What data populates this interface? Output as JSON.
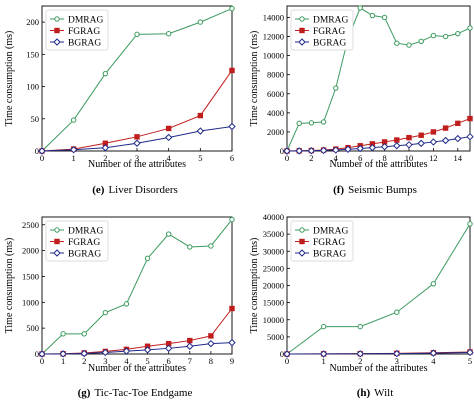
{
  "colors": {
    "DMRAG": "#3c9a5f",
    "FGRAG": "#c01d1d",
    "BGRAG": "#1f2a8a"
  },
  "chart_data": [
    {
      "type": "line",
      "caption_label": "(e)",
      "caption_text": "Liver Disorders",
      "xlabel": "Number of the attributes",
      "ylabel": "Time consumption (ms)",
      "xlim": [
        0,
        6
      ],
      "ylim": [
        0,
        225
      ],
      "xticks": [
        0,
        1,
        2,
        3,
        4,
        5,
        6
      ],
      "yticks": [
        0,
        50,
        100,
        150,
        200
      ],
      "legend": "top-left",
      "x": [
        0,
        1,
        2,
        3,
        4,
        5,
        6
      ],
      "series": [
        {
          "name": "DMRAG",
          "marker": "circle",
          "values": [
            0,
            48,
            120,
            181,
            182,
            200,
            221
          ]
        },
        {
          "name": "FGRAG",
          "marker": "square",
          "values": [
            0,
            3,
            12,
            22,
            35,
            55,
            125
          ]
        },
        {
          "name": "BGRAG",
          "marker": "diamond",
          "values": [
            0,
            2,
            5,
            12,
            21,
            31,
            38
          ]
        }
      ]
    },
    {
      "type": "line",
      "caption_label": "(f)",
      "caption_text": "Seismic Bumps",
      "xlabel": "Number of the attributes",
      "ylabel": "Time consumption (ms)",
      "xlim": [
        0,
        15
      ],
      "ylim": [
        0,
        15200
      ],
      "xticks": [
        0,
        2,
        4,
        6,
        8,
        10,
        12,
        14
      ],
      "yticks": [
        0,
        2000,
        4000,
        6000,
        8000,
        10000,
        12000,
        14000
      ],
      "legend": "top-left",
      "x": [
        0,
        1,
        2,
        3,
        4,
        5,
        6,
        7,
        8,
        9,
        10,
        11,
        12,
        13,
        14,
        15
      ],
      "series": [
        {
          "name": "DMRAG",
          "marker": "circle",
          "values": [
            0,
            2900,
            2950,
            3050,
            6600,
            11800,
            15000,
            14200,
            14000,
            11300,
            11100,
            11500,
            12100,
            12000,
            12300,
            12900
          ]
        },
        {
          "name": "FGRAG",
          "marker": "square",
          "values": [
            0,
            20,
            50,
            100,
            200,
            350,
            550,
            750,
            950,
            1150,
            1400,
            1650,
            2000,
            2400,
            2900,
            3400
          ]
        },
        {
          "name": "BGRAG",
          "marker": "diamond",
          "values": [
            0,
            10,
            30,
            60,
            100,
            180,
            260,
            350,
            450,
            550,
            650,
            800,
            950,
            1100,
            1300,
            1500
          ]
        }
      ]
    },
    {
      "type": "line",
      "caption_label": "(g)",
      "caption_text": "Tic-Tac-Toe Endgame",
      "xlabel": "Number of the attributes",
      "ylabel": "Time consumption (ms)",
      "xlim": [
        0,
        9
      ],
      "ylim": [
        0,
        2650
      ],
      "xticks": [
        0,
        1,
        2,
        3,
        4,
        5,
        6,
        7,
        8,
        9
      ],
      "yticks": [
        0,
        500,
        1000,
        1500,
        2000,
        2500
      ],
      "legend": "top-left",
      "x": [
        0,
        1,
        2,
        3,
        4,
        5,
        6,
        7,
        8,
        9
      ],
      "series": [
        {
          "name": "DMRAG",
          "marker": "circle",
          "values": [
            0,
            390,
            390,
            800,
            970,
            1850,
            2320,
            2070,
            2090,
            2600
          ]
        },
        {
          "name": "FGRAG",
          "marker": "square",
          "values": [
            0,
            5,
            20,
            50,
            90,
            150,
            200,
            260,
            350,
            880
          ]
        },
        {
          "name": "BGRAG",
          "marker": "diamond",
          "values": [
            0,
            3,
            10,
            30,
            55,
            80,
            110,
            150,
            200,
            220
          ]
        }
      ]
    },
    {
      "type": "line",
      "caption_label": "(h)",
      "caption_text": "Wilt",
      "xlabel": "Number of the attributes",
      "ylabel": "Time consumption (ms)",
      "xlim": [
        0,
        5
      ],
      "ylim": [
        0,
        40000
      ],
      "xticks": [
        0,
        1,
        2,
        3,
        4,
        5
      ],
      "yticks": [
        0,
        5000,
        10000,
        15000,
        20000,
        25000,
        30000,
        35000,
        40000
      ],
      "legend": "top-left",
      "x": [
        0,
        1,
        2,
        3,
        4,
        5
      ],
      "series": [
        {
          "name": "DMRAG",
          "marker": "circle",
          "values": [
            0,
            8000,
            8000,
            12200,
            20500,
            38000
          ]
        },
        {
          "name": "FGRAG",
          "marker": "square",
          "values": [
            0,
            50,
            100,
            200,
            350,
            600
          ]
        },
        {
          "name": "BGRAG",
          "marker": "diamond",
          "values": [
            0,
            30,
            60,
            120,
            250,
            450
          ]
        }
      ]
    }
  ]
}
